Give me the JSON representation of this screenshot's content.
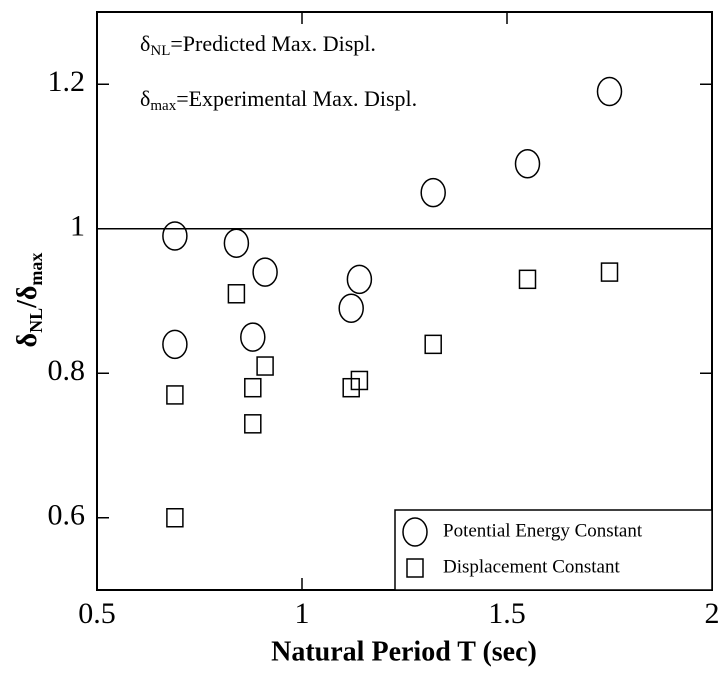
{
  "chart_data": {
    "type": "scatter",
    "xlabel": "Natural Period T (sec)",
    "ylabel": {
      "base": "δ",
      "sub": "NL",
      "mid": "/δ",
      "sub2": "max"
    },
    "annotations": [
      {
        "base": "δ",
        "sub": "NL",
        "text": "=Predicted Max. Displ."
      },
      {
        "base": "δ",
        "sub": "max",
        "text": "=Experimental Max. Displ."
      }
    ],
    "xlim": [
      0.5,
      2
    ],
    "ylim": [
      0.5,
      1.3
    ],
    "xticks": [
      0.5,
      1,
      1.5,
      2
    ],
    "yticks": [
      0.6,
      0.8,
      1,
      1.2
    ],
    "hline": 1,
    "legend": "lower right",
    "series": [
      {
        "name": "Potential Energy Constant",
        "marker": "circle",
        "color": "#000000",
        "x": [
          0.69,
          0.69,
          0.84,
          0.91,
          0.88,
          1.12,
          1.14,
          1.32,
          1.55,
          1.75
        ],
        "values": [
          0.99,
          0.84,
          0.98,
          0.94,
          0.85,
          0.89,
          0.93,
          1.05,
          1.09,
          1.19
        ]
      },
      {
        "name": "Displacement Constant",
        "marker": "square",
        "color": "#000000",
        "x": [
          0.69,
          0.69,
          0.84,
          0.88,
          0.88,
          0.91,
          1.12,
          1.14,
          1.32,
          1.55,
          1.75
        ],
        "values": [
          0.77,
          0.6,
          0.91,
          0.78,
          0.73,
          0.81,
          0.78,
          0.79,
          0.84,
          0.93,
          0.94
        ]
      }
    ]
  }
}
